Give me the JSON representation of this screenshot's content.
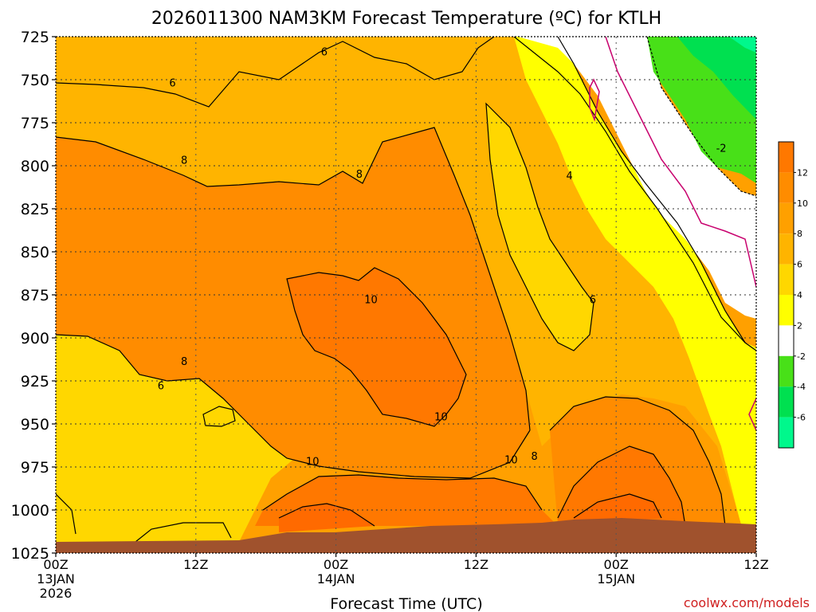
{
  "chart_data": {
    "type": "heatmap",
    "title": "2026011300 NAM3KM Forecast Temperature (ºC) for KTLH",
    "xlabel": "Forecast Time (UTC)",
    "ylabel": "",
    "credit": "coolwx.com/models",
    "y_axis": {
      "ticks": [
        "725",
        "750",
        "775",
        "800",
        "825",
        "850",
        "875",
        "900",
        "925",
        "950",
        "975",
        "1000",
        "1025"
      ],
      "range": [
        725,
        1025
      ],
      "inverted": true
    },
    "x_axis": {
      "ticks": [
        {
          "hour": 0,
          "label": "00Z",
          "sub1": "13JAN",
          "sub2": "2026"
        },
        {
          "hour": 12,
          "label": "12Z",
          "sub1": "",
          "sub2": ""
        },
        {
          "hour": 24,
          "label": "00Z",
          "sub1": "14JAN",
          "sub2": ""
        },
        {
          "hour": 36,
          "label": "12Z",
          "sub1": "",
          "sub2": ""
        },
        {
          "hour": 48,
          "label": "00Z",
          "sub1": "15JAN",
          "sub2": ""
        },
        {
          "hour": 60,
          "label": "12Z",
          "sub1": "",
          "sub2": ""
        }
      ],
      "range": [
        0,
        60
      ]
    },
    "grid": true,
    "colorbar": {
      "labels": [
        "12",
        "10",
        "8",
        "6",
        "4",
        "2",
        "-2",
        "-4",
        "-6"
      ],
      "colors": [
        "#ff7800",
        "#ff8c00",
        "#ffa000",
        "#ffb400",
        "#ffd700",
        "#ffff00",
        "#ffffff",
        "#48e018",
        "#00e050",
        "#00f88c"
      ]
    },
    "contour_labels": [
      {
        "text": "6",
        "hour": 23,
        "pressure": 734
      },
      {
        "text": "6",
        "hour": 10,
        "pressure": 752
      },
      {
        "text": "8",
        "hour": 11,
        "pressure": 797
      },
      {
        "text": "8",
        "hour": 26,
        "pressure": 805
      },
      {
        "text": "4",
        "hour": 44,
        "pressure": 806
      },
      {
        "text": "-2",
        "hour": 57,
        "pressure": 790
      },
      {
        "text": "10",
        "hour": 27,
        "pressure": 878
      },
      {
        "text": "6",
        "hour": 46,
        "pressure": 878
      },
      {
        "text": "8",
        "hour": 11,
        "pressure": 914
      },
      {
        "text": "6",
        "hour": 9,
        "pressure": 928
      },
      {
        "text": "10",
        "hour": 33,
        "pressure": 946
      },
      {
        "text": "10",
        "hour": 22,
        "pressure": 972
      },
      {
        "text": "10",
        "hour": 39,
        "pressure": 971
      },
      {
        "text": "8",
        "hour": 41,
        "pressure": 969
      }
    ],
    "colors": {
      "terrain": "#a0522d",
      "freezing_line": "#c8006e",
      "contour": "#000000"
    }
  }
}
